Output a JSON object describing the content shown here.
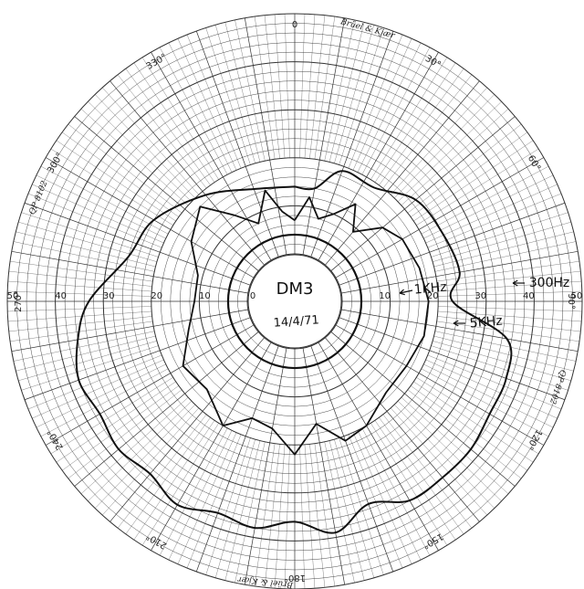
{
  "chart_data": {
    "type": "polar",
    "brand_text": "Brüel & Kjær",
    "brand_bottom": "Brüel & Kjær",
    "model_left": "QP 8102",
    "model_right": "QP 8102",
    "angle_labels": [
      "0",
      "30°",
      "60°",
      "90°",
      "120°",
      "150°",
      "180°",
      "210°",
      "240°",
      "270°",
      "300°",
      "330°"
    ],
    "radial_ticks": [
      "50",
      "40",
      "30",
      "20",
      "10",
      "0",
      "10",
      "20",
      "30",
      "40",
      "50"
    ],
    "rlim": [
      0,
      50
    ],
    "unit": "dB",
    "grid": true,
    "annotations": {
      "center_title": "DM3",
      "center_date": "14/4/71",
      "label_1k": "1KHz",
      "label_300": "300Hz",
      "label_5k": "5KHz"
    },
    "series": [
      {
        "name": "300Hz",
        "theta": [
          0,
          30,
          60,
          90,
          120,
          150,
          180,
          210,
          240,
          270,
          300,
          330,
          360
        ],
        "r": [
          4,
          4,
          4,
          4,
          4,
          4,
          4,
          4,
          4,
          4,
          4,
          4,
          4
        ]
      },
      {
        "name": "1KHz",
        "theta": [
          0,
          8,
          16,
          24,
          32,
          40,
          50,
          60,
          75,
          90,
          105,
          120,
          135,
          150,
          160,
          170,
          180,
          190,
          200,
          210,
          225,
          240,
          255,
          270,
          285,
          300,
          315,
          325,
          335,
          345,
          352,
          360
        ],
        "r": [
          7,
          12,
          8,
          10,
          14,
          9,
          14,
          16,
          17,
          18,
          18,
          17,
          17,
          20,
          21,
          16,
          22,
          17,
          16,
          20,
          16,
          17,
          13,
          11,
          11,
          15,
          18,
          12,
          8,
          14,
          9,
          7
        ]
      },
      {
        "name": "5KHz",
        "theta": [
          0,
          10,
          20,
          35,
          50,
          65,
          80,
          90,
          100,
          110,
          120,
          130,
          140,
          150,
          160,
          170,
          180,
          190,
          200,
          210,
          220,
          230,
          240,
          250,
          260,
          270,
          285,
          300,
          320,
          340,
          360
        ],
        "r": [
          14,
          14,
          19,
          19,
          23,
          24,
          25,
          23,
          35,
          37,
          37,
          38,
          38,
          38,
          35,
          39,
          36,
          38,
          37,
          39,
          37,
          38,
          37,
          38,
          36,
          33,
          26,
          24,
          19,
          15,
          14
        ]
      }
    ]
  }
}
